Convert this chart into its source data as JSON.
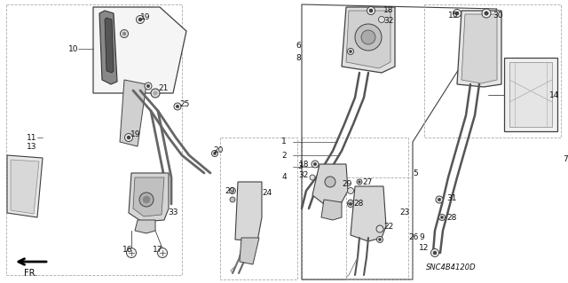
{
  "bg_color": "#ffffff",
  "diagram_code": "SNC4B4120D",
  "fig_width": 6.4,
  "fig_height": 3.19,
  "dpi": 100,
  "lc": "#404040",
  "fs": 6.5,
  "tc": "#111111"
}
